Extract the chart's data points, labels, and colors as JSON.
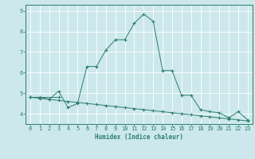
{
  "xlabel": "Humidex (Indice chaleur)",
  "bg_color": "#cce8ec",
  "grid_color": "#ffffff",
  "line_color": "#2e7d6e",
  "series1_x": [
    0,
    1,
    2,
    3,
    4,
    5,
    6,
    7,
    8,
    9,
    10,
    11,
    12,
    13,
    14,
    15,
    16,
    17,
    18,
    19,
    20,
    21,
    22,
    23
  ],
  "series1_y": [
    4.8,
    4.8,
    4.7,
    5.1,
    4.3,
    4.5,
    6.3,
    6.3,
    7.1,
    7.6,
    7.6,
    8.4,
    8.85,
    8.5,
    6.1,
    6.1,
    4.9,
    4.9,
    4.2,
    4.1,
    4.05,
    3.8,
    4.1,
    3.7
  ],
  "series2_x": [
    0,
    1,
    2,
    3,
    4,
    5,
    6,
    7,
    8,
    9,
    10,
    11,
    12,
    13,
    14,
    15,
    16,
    17,
    18,
    19,
    20,
    21,
    22,
    23
  ],
  "series2_y": [
    4.8,
    4.75,
    4.7,
    4.65,
    4.6,
    4.55,
    4.5,
    4.45,
    4.4,
    4.35,
    4.3,
    4.25,
    4.2,
    4.15,
    4.1,
    4.05,
    4.0,
    3.95,
    3.9,
    3.85,
    3.8,
    3.75,
    3.7,
    3.65
  ],
  "series3_x": [
    0,
    3
  ],
  "series3_y": [
    4.8,
    4.8
  ],
  "ylim": [
    3.5,
    9.3
  ],
  "xlim": [
    -0.5,
    23.5
  ],
  "yticks": [
    4,
    5,
    6,
    7,
    8,
    9
  ],
  "xticks": [
    0,
    1,
    2,
    3,
    4,
    5,
    6,
    7,
    8,
    9,
    10,
    11,
    12,
    13,
    14,
    15,
    16,
    17,
    18,
    19,
    20,
    21,
    22,
    23
  ]
}
